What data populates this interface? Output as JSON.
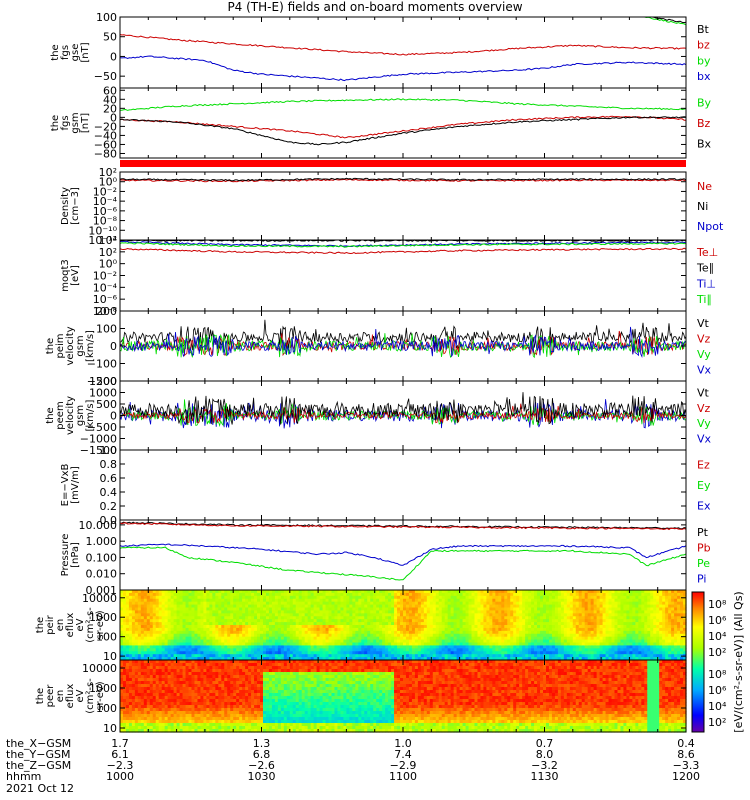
{
  "title": "P4 (TH-E) fields and on-board moments overview",
  "date_label": "2021 Oct 12",
  "colors": {
    "black": "#000000",
    "red": "#cc0000",
    "green": "#00dd00",
    "blue": "#0000cc",
    "darkred": "#800000"
  },
  "chart_data": [
    {
      "type": "line",
      "id": "fgs",
      "ylabel": [
        "the",
        "fgs",
        "gse",
        "[nT]"
      ],
      "ylim": [
        -80,
        100
      ],
      "yticks": [
        "100",
        "50",
        "0",
        "−50"
      ],
      "ytick_values": [
        100,
        50,
        0,
        -50
      ],
      "legend": [
        {
          "label": "Bt",
          "color": "#000000"
        },
        {
          "label": "bz",
          "color": "#cc0000"
        },
        {
          "label": "by",
          "color": "#00dd00"
        },
        {
          "label": "bx",
          "color": "#0000cc"
        }
      ],
      "series": [
        {
          "name": "Bt",
          "color": "#000000",
          "x": [
            0,
            0.1,
            0.2,
            0.3,
            0.4,
            0.5,
            0.6,
            0.7,
            0.8,
            0.9,
            1.0
          ],
          "y": [
            110,
            112,
            115,
            118,
            120,
            122,
            120,
            118,
            115,
            110,
            85
          ]
        },
        {
          "name": "bz",
          "color": "#cc0000",
          "x": [
            0,
            0.1,
            0.2,
            0.3,
            0.4,
            0.5,
            0.6,
            0.7,
            0.8,
            0.9,
            1.0
          ],
          "y": [
            55,
            42,
            32,
            22,
            12,
            5,
            10,
            20,
            28,
            22,
            20
          ]
        },
        {
          "name": "by",
          "color": "#00dd00",
          "x": [
            0,
            0.1,
            0.2,
            0.3,
            0.4,
            0.5,
            0.6,
            0.7,
            0.8,
            0.9,
            1.0
          ],
          "y": [
            110,
            112,
            115,
            118,
            121,
            124,
            122,
            119,
            115,
            108,
            80
          ]
        },
        {
          "name": "bx",
          "color": "#0000cc",
          "x": [
            0,
            0.05,
            0.1,
            0.15,
            0.2,
            0.25,
            0.3,
            0.35,
            0.4,
            0.5,
            0.6,
            0.7,
            0.75,
            0.8,
            0.9,
            1.0
          ],
          "y": [
            -5,
            0,
            -5,
            -10,
            -35,
            -45,
            -50,
            -55,
            -60,
            -45,
            -40,
            -35,
            -30,
            -20,
            -15,
            -20
          ]
        }
      ]
    },
    {
      "type": "line",
      "id": "fgs-gsm",
      "ylabel": [
        "the",
        "fgs",
        "gsm",
        "[nT]"
      ],
      "ylim": [
        -90,
        65
      ],
      "yticks": [
        "60",
        "40",
        "20",
        "0",
        "−20",
        "−40",
        "−60",
        "−80"
      ],
      "ytick_values": [
        60,
        40,
        20,
        0,
        -20,
        -40,
        -60,
        -80
      ],
      "legend": [
        {
          "label": "By",
          "color": "#00dd00"
        },
        {
          "label": "Bz",
          "color": "#cc0000"
        },
        {
          "label": "Bx",
          "color": "#000000"
        }
      ],
      "series": [
        {
          "name": "By",
          "color": "#00dd00",
          "x": [
            0,
            0.1,
            0.2,
            0.3,
            0.4,
            0.5,
            0.6,
            0.7,
            0.8,
            0.9,
            1.0
          ],
          "y": [
            15,
            25,
            30,
            35,
            38,
            40,
            38,
            30,
            25,
            20,
            18
          ]
        },
        {
          "name": "Bz",
          "color": "#cc0000",
          "x": [
            0,
            0.1,
            0.2,
            0.3,
            0.4,
            0.5,
            0.6,
            0.7,
            0.8,
            0.9,
            1.0
          ],
          "y": [
            -5,
            -10,
            -20,
            -30,
            -45,
            -30,
            -15,
            -5,
            0,
            2,
            -5
          ]
        },
        {
          "name": "Bx",
          "color": "#000000",
          "x": [
            0,
            0.1,
            0.2,
            0.25,
            0.3,
            0.35,
            0.4,
            0.5,
            0.6,
            0.7,
            0.8,
            0.9,
            1.0
          ],
          "y": [
            -5,
            -10,
            -25,
            -40,
            -55,
            -60,
            -55,
            -35,
            -20,
            -10,
            -5,
            0,
            0
          ]
        }
      ]
    },
    {
      "type": "bar",
      "id": "mode-bar",
      "color": "#ff0000"
    },
    {
      "type": "line",
      "id": "density",
      "ylabel": [
        "Density",
        "[cm−3]"
      ],
      "ylim_log": [
        -12,
        2
      ],
      "yticks": [
        "10²",
        "10⁰",
        "10⁻²",
        "10⁻⁴",
        "10⁻⁶",
        "10⁻⁸",
        "10⁻¹⁰",
        "10⁻¹²"
      ],
      "ytick_values": [
        2,
        0,
        -2,
        -4,
        -6,
        -8,
        -10,
        -12
      ],
      "legend": [
        {
          "label": "Ne",
          "color": "#cc0000"
        },
        {
          "label": "Ni",
          "color": "#000000"
        },
        {
          "label": "Npot",
          "color": "#0000cc"
        }
      ],
      "series": [
        {
          "name": "Ne",
          "color": "#cc0000",
          "x": [
            0,
            0.2,
            0.4,
            0.6,
            0.8,
            1.0
          ],
          "y": [
            0.3,
            0.1,
            0.4,
            0.2,
            0.3,
            0.3
          ]
        },
        {
          "name": "Ni",
          "color": "#000000",
          "x": [
            0,
            0.2,
            0.4,
            0.6,
            0.8,
            1.0
          ],
          "y": [
            0.5,
            0.3,
            0.6,
            0.4,
            0.5,
            0.5
          ]
        }
      ]
    },
    {
      "type": "line",
      "id": "moqt3",
      "ylabel": [
        "moqt3",
        "[eV]"
      ],
      "ylim_log": [
        -8,
        4
      ],
      "yticks": [
        "10⁴",
        "10²",
        "10⁰",
        "10⁻²",
        "10⁻⁴",
        "10⁻⁶",
        "10⁻⁸"
      ],
      "ytick_values": [
        4,
        2,
        0,
        -2,
        -4,
        -6,
        -8
      ],
      "legend": [
        {
          "label": "Te⊥",
          "color": "#cc0000"
        },
        {
          "label": "Te∥",
          "color": "#000000"
        },
        {
          "label": "Ti⊥",
          "color": "#0000cc"
        },
        {
          "label": "Ti∥",
          "color": "#00dd00"
        }
      ],
      "series": [
        {
          "name": "Ti⊥",
          "color": "#0000cc",
          "x": [
            0,
            0.2,
            0.4,
            0.6,
            0.8,
            1.0
          ],
          "y": [
            3.7,
            3.2,
            3.0,
            3.3,
            3.5,
            3.6
          ]
        },
        {
          "name": "Ti∥",
          "color": "#00dd00",
          "x": [
            0,
            0.2,
            0.4,
            0.6,
            0.8,
            1.0
          ],
          "y": [
            3.5,
            3.0,
            2.9,
            3.2,
            3.3,
            3.4
          ]
        },
        {
          "name": "Te⊥",
          "color": "#cc0000",
          "x": [
            0,
            0.2,
            0.4,
            0.6,
            0.8,
            1.0
          ],
          "y": [
            2.5,
            2.0,
            1.8,
            2.2,
            2.4,
            2.5
          ]
        },
        {
          "name": "Te∥",
          "color": "#000000",
          "x": [
            0,
            0.2,
            0.4,
            0.6,
            0.8,
            1.0
          ],
          "y": [
            3.9,
            3.9,
            3.9,
            3.9,
            3.9,
            3.9
          ]
        }
      ]
    },
    {
      "type": "line",
      "id": "peim-vel",
      "ylabel": [
        "the",
        "peim",
        "velocity",
        "gsm",
        "[km/s]"
      ],
      "ylim": [
        -200,
        200
      ],
      "yticks": [
        "200",
        "100",
        "0",
        "−100",
        "−200"
      ],
      "ytick_values": [
        200,
        100,
        0,
        -100,
        -200
      ],
      "legend": [
        {
          "label": "Vt",
          "color": "#000000"
        },
        {
          "label": "Vz",
          "color": "#cc0000"
        },
        {
          "label": "Vy",
          "color": "#00dd00"
        },
        {
          "label": "Vx",
          "color": "#0000cc"
        }
      ],
      "noisy": [
        {
          "name": "Vt",
          "color": "#000000",
          "base": 50,
          "amp": 60
        },
        {
          "name": "Vz",
          "color": "#cc0000",
          "base": 0,
          "amp": 50
        },
        {
          "name": "Vy",
          "color": "#00dd00",
          "base": 0,
          "amp": 60
        },
        {
          "name": "Vx",
          "color": "#0000cc",
          "base": 0,
          "amp": 55
        }
      ]
    },
    {
      "type": "line",
      "id": "peem-vel",
      "ylabel": [
        "the",
        "peem",
        "velocity",
        "gsm",
        "[km/s]"
      ],
      "ylim": [
        -1500,
        1500
      ],
      "yticks": [
        "1500",
        "1000",
        "500",
        "0",
        "−500",
        "−1000",
        "−1500"
      ],
      "ytick_values": [
        1500,
        1000,
        500,
        0,
        -500,
        -1000,
        -1500
      ],
      "legend": [
        {
          "label": "Vt",
          "color": "#000000"
        },
        {
          "label": "Vz",
          "color": "#cc0000"
        },
        {
          "label": "Vy",
          "color": "#00dd00"
        },
        {
          "label": "Vx",
          "color": "#0000cc"
        }
      ],
      "noisy": [
        {
          "name": "Vx",
          "color": "#0000cc",
          "base": 0,
          "amp": 500
        },
        {
          "name": "Vy",
          "color": "#00dd00",
          "base": 0,
          "amp": 400
        },
        {
          "name": "Vz",
          "color": "#cc0000",
          "base": 0,
          "amp": 300
        },
        {
          "name": "Vt",
          "color": "#000000",
          "base": 250,
          "amp": 600
        }
      ]
    },
    {
      "type": "line",
      "id": "efield",
      "ylabel": [
        "E=−VxB",
        "[mV/m]"
      ],
      "ylim": [
        0,
        1
      ],
      "yticks": [
        "1.0",
        "0.8",
        "0.6",
        "0.4",
        "0.2",
        "0.0"
      ],
      "ytick_values": [
        1.0,
        0.8,
        0.6,
        0.4,
        0.2,
        0.0
      ],
      "legend": [
        {
          "label": "Ez",
          "color": "#cc0000"
        },
        {
          "label": "Ey",
          "color": "#00dd00"
        },
        {
          "label": "Ex",
          "color": "#0000cc"
        }
      ]
    },
    {
      "type": "line",
      "id": "pressure",
      "ylabel": [
        "Pressure",
        "[nPa]"
      ],
      "ylim_log": [
        -3,
        1.3
      ],
      "yticks": [
        "10.000",
        "1.000",
        "0.100",
        "0.010",
        "0.001"
      ],
      "ytick_values": [
        1,
        0,
        -1,
        -2,
        -3
      ],
      "legend": [
        {
          "label": "Pt",
          "color": "#000000"
        },
        {
          "label": "Pb",
          "color": "#cc0000"
        },
        {
          "label": "Pe",
          "color": "#00dd00"
        },
        {
          "label": "Pi",
          "color": "#0000cc"
        }
      ],
      "series": [
        {
          "name": "Pt",
          "color": "#000000",
          "x": [
            0,
            0.2,
            0.4,
            0.6,
            0.8,
            1.0
          ],
          "y": [
            1.15,
            1.0,
            0.95,
            0.9,
            0.85,
            0.8
          ]
        },
        {
          "name": "Pb",
          "color": "#cc0000",
          "x": [
            0,
            0.2,
            0.4,
            0.6,
            0.8,
            1.0
          ],
          "y": [
            1.1,
            0.95,
            0.9,
            0.85,
            0.8,
            0.75
          ]
        },
        {
          "name": "Pi",
          "color": "#0000cc",
          "x": [
            0,
            0.08,
            0.15,
            0.25,
            0.35,
            0.4,
            0.45,
            0.5,
            0.55,
            0.6,
            0.7,
            0.8,
            0.9,
            0.93,
            1.0
          ],
          "y": [
            -0.3,
            -0.2,
            -0.3,
            -0.5,
            -0.8,
            -0.7,
            -1.0,
            -1.5,
            -0.5,
            -0.3,
            -0.3,
            -0.3,
            -0.4,
            -1.0,
            -0.3
          ]
        },
        {
          "name": "Pe",
          "color": "#00dd00",
          "x": [
            0,
            0.08,
            0.12,
            0.2,
            0.3,
            0.38,
            0.45,
            0.5,
            0.55,
            0.6,
            0.7,
            0.8,
            0.9,
            0.93,
            1.0
          ],
          "y": [
            -0.4,
            -0.4,
            -1.0,
            -1.3,
            -1.8,
            -2.0,
            -2.2,
            -2.4,
            -0.6,
            -0.6,
            -0.6,
            -0.6,
            -0.8,
            -1.5,
            -0.8
          ]
        }
      ]
    },
    {
      "type": "heatmap",
      "id": "peir-spec",
      "ylabel": [
        "the",
        "peir",
        "en",
        "eflux",
        "eV",
        "(cm²-s-",
        "sr-eV)"
      ],
      "yticks": [
        "10000",
        "1000",
        "100",
        "10"
      ],
      "ytick_values": [
        4,
        3,
        2,
        1
      ],
      "ylim_log": [
        0.8,
        4.4
      ],
      "colorbar_ticks": [
        "10⁸",
        "10⁶",
        "10⁴",
        "10²"
      ]
    },
    {
      "type": "heatmap",
      "id": "peer-spec",
      "ylabel": [
        "the",
        "peer",
        "en",
        "eflux",
        "eV",
        "(cm²-s-",
        "sr-eV)"
      ],
      "yticks": [
        "10000",
        "1000",
        "100",
        "10"
      ],
      "ytick_values": [
        4,
        3,
        2,
        1
      ],
      "ylim_log": [
        0.8,
        4.4
      ],
      "colorbar_ticks": [
        "10⁸",
        "10⁶",
        "10⁴",
        "10²"
      ]
    }
  ],
  "colorbar_label": "[eV/(cm²-s-sr-eV)] (All Qs)",
  "x_axis": {
    "row_labels": [
      "the_X−GSM",
      "the_Y−GSM",
      "the_Z−GSM",
      "hhmm"
    ],
    "ticks": [
      {
        "pos": 0,
        "values": [
          "1.7",
          "6.1",
          "−2.3",
          "1000"
        ]
      },
      {
        "pos": 0.25,
        "values": [
          "1.3",
          "6.8",
          "−2.6",
          "1030"
        ]
      },
      {
        "pos": 0.5,
        "values": [
          "1.0",
          "7.4",
          "−2.9",
          "1100"
        ]
      },
      {
        "pos": 0.75,
        "values": [
          "0.7",
          "8.0",
          "−3.2",
          "1130"
        ]
      },
      {
        "pos": 1.0,
        "values": [
          "0.4",
          "8.6",
          "−3.3",
          "1200"
        ]
      }
    ]
  }
}
